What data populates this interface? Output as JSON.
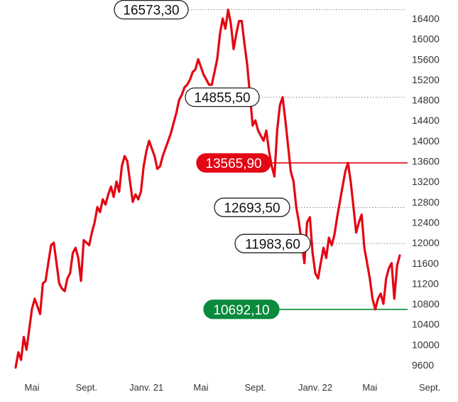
{
  "chart_data": {
    "type": "line",
    "title": "",
    "xlabel": "",
    "ylabel": "",
    "ylim": [
      9400,
      16700
    ],
    "yticks": [
      9600,
      10000,
      10400,
      10800,
      11200,
      11600,
      12000,
      12400,
      12800,
      13200,
      13600,
      14000,
      14400,
      14800,
      15200,
      15600,
      16000,
      16400
    ],
    "xticks": [
      {
        "label": "Mai",
        "index": 6
      },
      {
        "label": "Sept.",
        "index": 26
      },
      {
        "label": "Janv. 21",
        "index": 48
      },
      {
        "label": "Mai",
        "index": 68
      },
      {
        "label": "Sept.",
        "index": 88
      },
      {
        "label": "Janv. 22",
        "index": 110
      },
      {
        "label": "Mai",
        "index": 130
      },
      {
        "label": "Sept.",
        "index": 152
      }
    ],
    "series": [
      {
        "color": "#e30613",
        "values": [
          9550,
          9850,
          9700,
          10150,
          9900,
          10300,
          10700,
          10900,
          10750,
          10600,
          11200,
          11250,
          11600,
          11950,
          12000,
          11600,
          11200,
          11100,
          11050,
          11300,
          11400,
          11800,
          11900,
          11700,
          11250,
          12050,
          12000,
          11950,
          12200,
          12400,
          12700,
          12600,
          12850,
          12750,
          12950,
          13100,
          12900,
          13200,
          13000,
          13500,
          13700,
          13600,
          13200,
          12800,
          12950,
          12850,
          13000,
          13500,
          13800,
          14000,
          13850,
          13700,
          13450,
          13500,
          13700,
          13850,
          14000,
          14150,
          14350,
          14550,
          14800,
          14900,
          15050,
          15100,
          15200,
          15350,
          15400,
          15600,
          15450,
          15300,
          15200,
          15100,
          15100,
          15350,
          15600,
          16100,
          16400,
          16200,
          16573,
          16300,
          15800,
          16100,
          16350,
          16350,
          15900,
          15500,
          14900,
          14300,
          14400,
          14200,
          14100,
          14000,
          14200,
          13800,
          13500,
          13300,
          14200,
          14700,
          14855,
          14400,
          13900,
          13400,
          13200,
          12700,
          12400,
          12000,
          11600,
          12400,
          12500,
          11800,
          11400,
          11300,
          11600,
          11900,
          11700,
          12100,
          11950,
          12150,
          12500,
          12800,
          13100,
          13400,
          13566,
          13200,
          12700,
          12200,
          12400,
          12550,
          11900,
          11600,
          11300,
          10900,
          10692,
          10900,
          11000,
          10800,
          11300,
          11500,
          11600,
          10900,
          11550,
          11750
        ]
      }
    ],
    "annotations": [
      {
        "label": "16573,30",
        "value": 16573.3,
        "index": 78,
        "style": "outline"
      },
      {
        "label": "14855,50",
        "value": 14855.5,
        "index": 98,
        "style": "outline"
      },
      {
        "label": "13565,90",
        "value": 13565.9,
        "index": 122,
        "style": "red"
      },
      {
        "label": "12693,50",
        "value": 12693.5,
        "style": "outline"
      },
      {
        "label": "11983,60",
        "value": 11983.6,
        "style": "outline"
      },
      {
        "label": "10692,10",
        "value": 10692.1,
        "index": 132,
        "style": "green"
      }
    ],
    "colors": {
      "line": "#e30613",
      "red_callout": "#e30613",
      "green_callout": "#0a8a3c",
      "outline_callout": "#222222",
      "guide": "#888888"
    }
  }
}
